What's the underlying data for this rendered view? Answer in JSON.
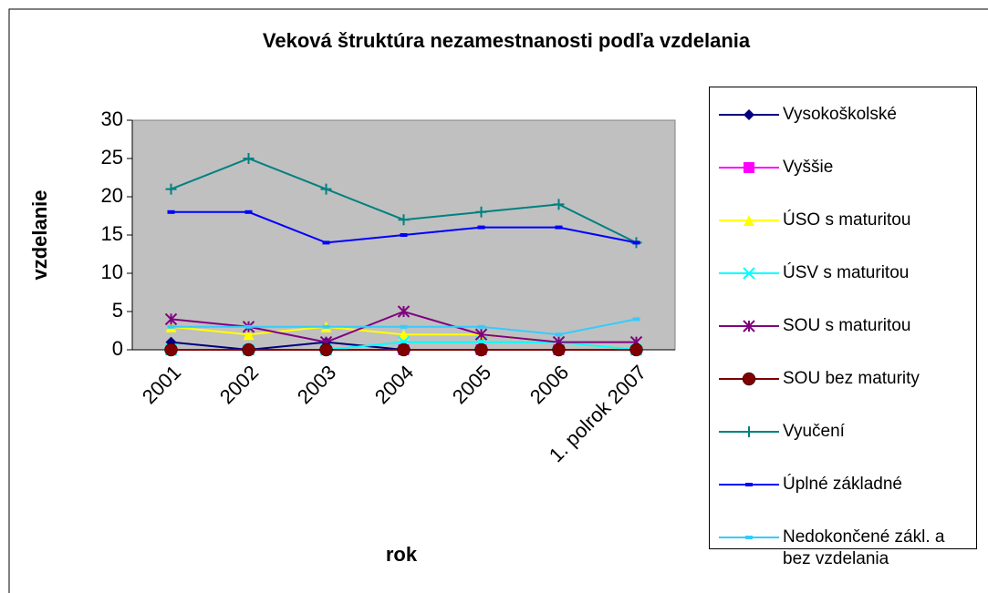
{
  "chart_data": {
    "type": "line",
    "title": "Veková štruktúra nezamestnanosti podľa vzdelania",
    "x_label": "rok",
    "y_label": "vzdelanie",
    "categories": [
      "2001",
      "2002",
      "2003",
      "2004",
      "2005",
      "2006",
      "1. polrok 2007"
    ],
    "ylim": [
      0,
      30
    ],
    "yticks": [
      0,
      5,
      10,
      15,
      20,
      25,
      30
    ],
    "grid": false,
    "plot_background": "#c0c0c0",
    "legend": "right",
    "series": [
      {
        "name": "Vysokoškolské",
        "color": "#000080",
        "marker": "diamond",
        "values": [
          1,
          0,
          1,
          0,
          0,
          0,
          0
        ]
      },
      {
        "name": "Vyššie",
        "color": "#ff00ff",
        "marker": "square",
        "values": [
          0,
          0,
          0,
          0,
          0,
          0,
          0
        ]
      },
      {
        "name": "ÚSO s maturitou",
        "color": "#ffff00",
        "marker": "triangle",
        "values": [
          3,
          2,
          3,
          2,
          2,
          1,
          0
        ]
      },
      {
        "name": "ÚSV s maturitou",
        "color": "#00ffff",
        "marker": "x",
        "values": [
          0,
          0,
          0,
          1,
          1,
          1,
          0
        ]
      },
      {
        "name": "SOU s maturitou",
        "color": "#800080",
        "marker": "star",
        "values": [
          4,
          3,
          1,
          5,
          2,
          1,
          1
        ]
      },
      {
        "name": "SOU bez maturity",
        "color": "#800000",
        "marker": "circle",
        "values": [
          0,
          0,
          0,
          0,
          0,
          0,
          0
        ]
      },
      {
        "name": "Vyučení",
        "color": "#008080",
        "marker": "plus",
        "values": [
          21,
          25,
          21,
          17,
          18,
          19,
          14
        ]
      },
      {
        "name": "Úplné základné",
        "color": "#0000ff",
        "marker": "dash",
        "values": [
          18,
          18,
          14,
          15,
          16,
          16,
          14
        ]
      },
      {
        "name": "Nedokončené zákl. a bez vzdelania",
        "color": "#33ccff",
        "marker": "dash",
        "values": [
          3,
          3,
          3,
          3,
          3,
          2,
          4
        ]
      }
    ]
  }
}
